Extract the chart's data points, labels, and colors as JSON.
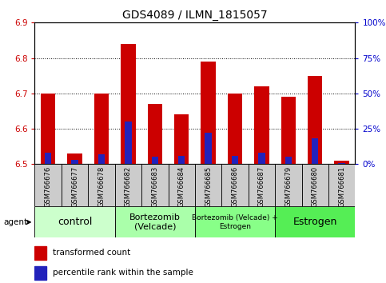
{
  "title": "GDS4089 / ILMN_1815057",
  "samples": [
    "GSM766676",
    "GSM766677",
    "GSM766678",
    "GSM766682",
    "GSM766683",
    "GSM766684",
    "GSM766685",
    "GSM766686",
    "GSM766687",
    "GSM766679",
    "GSM766680",
    "GSM766681"
  ],
  "red_values": [
    6.7,
    6.53,
    6.7,
    6.84,
    6.67,
    6.64,
    6.79,
    6.7,
    6.72,
    6.69,
    6.75,
    6.51
  ],
  "blue_values_pct": [
    8,
    3,
    7,
    30,
    5,
    6,
    22,
    6,
    8,
    5,
    18,
    1
  ],
  "ylim_left": [
    6.5,
    6.9
  ],
  "ylim_right": [
    0,
    100
  ],
  "yticks_left": [
    6.5,
    6.6,
    6.7,
    6.8,
    6.9
  ],
  "yticks_right": [
    0,
    25,
    50,
    75,
    100
  ],
  "ytick_labels_right": [
    "0%",
    "25%",
    "50%",
    "75%",
    "100%"
  ],
  "groups": [
    {
      "label": "control",
      "start": 0,
      "end": 3,
      "color": "#ccffcc",
      "fontsize": 9
    },
    {
      "label": "Bortezomib\n(Velcade)",
      "start": 3,
      "end": 6,
      "color": "#aaffaa",
      "fontsize": 8
    },
    {
      "label": "Bortezomib (Velcade) +\nEstrogen",
      "start": 6,
      "end": 9,
      "color": "#88ff88",
      "fontsize": 6.5
    },
    {
      "label": "Estrogen",
      "start": 9,
      "end": 12,
      "color": "#55ee55",
      "fontsize": 9
    }
  ],
  "bar_color_red": "#cc0000",
  "bar_color_blue": "#2222bb",
  "bar_width": 0.55,
  "blue_bar_width": 0.25,
  "base_value": 6.5,
  "legend_red": "transformed count",
  "legend_blue": "percentile rank within the sample",
  "agent_label": "agent",
  "ylabel_left_color": "#cc0000",
  "ylabel_right_color": "#0000cc",
  "grid_lines": [
    6.6,
    6.7,
    6.8
  ],
  "sample_box_color": "#cccccc",
  "title_fontsize": 10,
  "tick_fontsize": 7.5
}
